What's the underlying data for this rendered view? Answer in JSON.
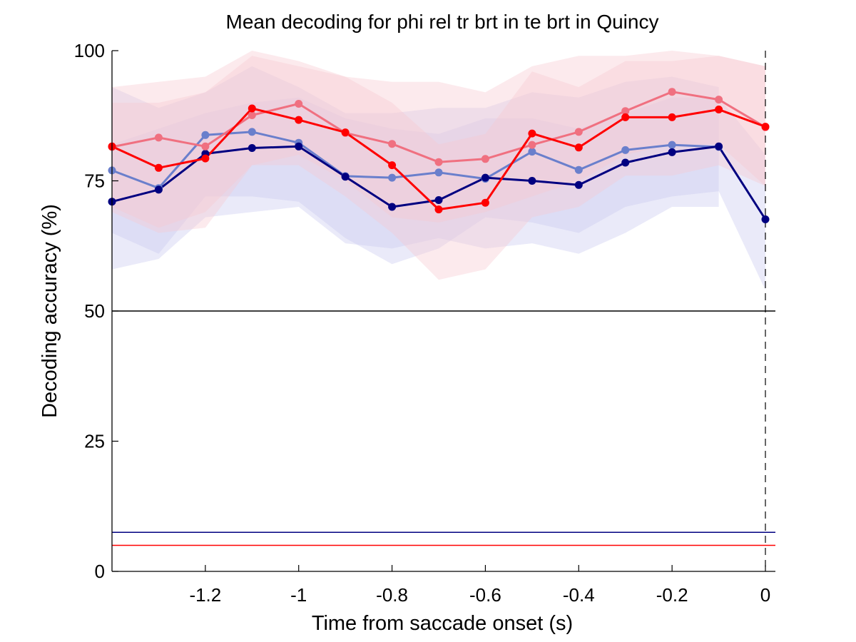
{
  "chart_data": {
    "type": "line",
    "title": "Mean decoding for phi rel tr brt in te brt in  Quincy",
    "xlabel": "Time from saccade onset (s)",
    "ylabel": "Decoding accuracy (%)",
    "xlim": [
      -1.4,
      0.02
    ],
    "ylim": [
      0,
      100
    ],
    "xticks": [
      -1.2,
      -1,
      -0.8,
      -0.6,
      -0.4,
      -0.2,
      0
    ],
    "xtick_labels": [
      "-1.2",
      "-1",
      "-0.8",
      "-0.6",
      "-0.4",
      "-0.2",
      "0"
    ],
    "yticks": [
      0,
      25,
      50,
      75,
      100
    ],
    "ytick_labels": [
      "0",
      "25",
      "50",
      "75",
      "100"
    ],
    "x": [
      -1.4,
      -1.3,
      -1.2,
      -1.1,
      -1.0,
      -0.9,
      -0.8,
      -0.7,
      -0.6,
      -0.5,
      -0.4,
      -0.3,
      -0.2,
      -0.1,
      0.0
    ],
    "series": [
      {
        "color": "#6a7fcc",
        "values": [
          77.0,
          73.6,
          83.8,
          84.4,
          82.3,
          75.9,
          75.6,
          76.6,
          75.4,
          80.6,
          77.1,
          80.9,
          81.9,
          81.5,
          null
        ],
        "band_lower": [
          58,
          60,
          68,
          69,
          70,
          63,
          62,
          64,
          62,
          63,
          61,
          65,
          70,
          70,
          null
        ],
        "band_upper": [
          93,
          89,
          92,
          97,
          93,
          88,
          88,
          89,
          89,
          92,
          91,
          94,
          95,
          93,
          null
        ],
        "band_color": "#c8c8f0"
      },
      {
        "color": "#000080",
        "values": [
          71.0,
          73.3,
          80.2,
          81.3,
          81.6,
          75.8,
          70.0,
          71.3,
          75.6,
          75.0,
          74.2,
          78.5,
          80.5,
          81.6,
          67.6
        ],
        "band_lower": [
          65,
          61,
          72,
          72,
          71,
          64,
          59,
          62,
          68,
          67,
          65,
          70,
          72,
          73,
          54
        ],
        "band_upper": [
          82,
          85,
          88,
          90,
          91,
          87,
          85,
          84,
          87,
          87,
          85,
          88,
          91,
          91,
          80
        ],
        "band_color": "#c8c8f0"
      },
      {
        "color": "#f07080",
        "values": [
          81.5,
          83.3,
          81.6,
          87.6,
          89.8,
          84.2,
          82.1,
          78.6,
          79.2,
          81.9,
          84.4,
          88.4,
          92.1,
          90.6,
          85.3
        ],
        "band_lower": [
          70,
          66,
          69,
          78,
          80,
          75,
          68,
          67,
          69,
          72,
          75,
          80,
          82,
          82,
          74
        ],
        "band_upper": [
          93,
          94,
          95,
          100,
          98,
          95,
          94,
          94,
          92,
          97,
          99,
          99,
          100,
          99,
          97
        ],
        "band_color": "#f7c8cf"
      },
      {
        "color": "#ff0000",
        "values": [
          81.6,
          77.5,
          79.3,
          88.9,
          86.7,
          84.3,
          78.0,
          69.5,
          70.8,
          84.1,
          81.4,
          87.2,
          87.2,
          88.7,
          85.4
        ],
        "band_lower": [
          69,
          65,
          66,
          78,
          78,
          72,
          65,
          56,
          58,
          68,
          70,
          76,
          76,
          78,
          74
        ],
        "band_upper": [
          90,
          90,
          92,
          99,
          97,
          95,
          90,
          82,
          84,
          96,
          93,
          98,
          98,
          99,
          97
        ],
        "band_color": "#f7c8cf"
      }
    ],
    "reference_lines": [
      {
        "y": 50,
        "color": "#000000"
      },
      {
        "y": 7.5,
        "color": "#000080"
      },
      {
        "y": 5,
        "color": "#ff0000"
      }
    ],
    "vertical_line": {
      "x": 0,
      "color": "#000000",
      "style": "dashed"
    },
    "grid": false,
    "legend": "none"
  }
}
